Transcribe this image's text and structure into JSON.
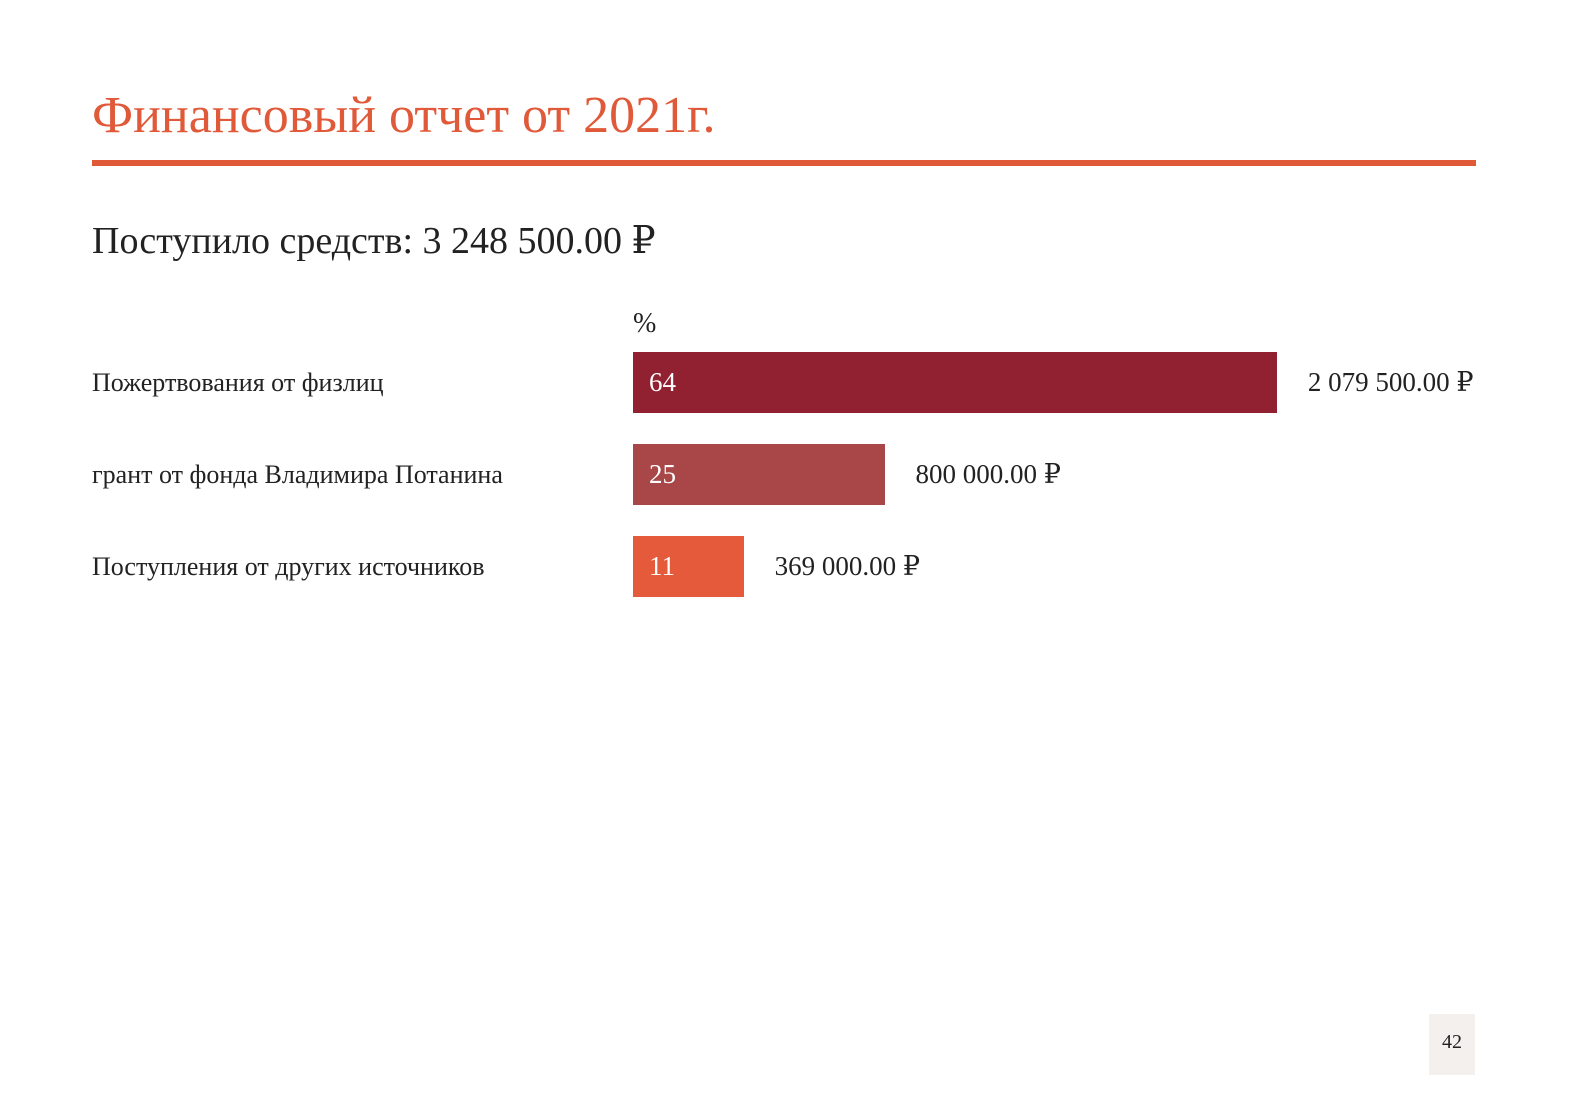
{
  "title": "Финансовый отчет от 2021г.",
  "subtitle": "Поступило средств: 3 248 500.00 ₽",
  "page_number": "42",
  "colors": {
    "accent": "#E05A3A",
    "bar1": "#912030",
    "bar2": "#A84648",
    "bar3": "#E45A3A"
  },
  "chart_data": {
    "type": "bar",
    "orientation": "horizontal",
    "unit_label": "%",
    "categories": [
      "Пожертвования от физлиц",
      "грант от фонда Владимира Потанина",
      "Поступления от других источников"
    ],
    "values": [
      64,
      25,
      11
    ],
    "value_labels": [
      "64",
      "25",
      "11"
    ],
    "amounts": [
      "2 079 500.00 ₽",
      "800 000.00 ₽",
      "369 000.00 ₽"
    ],
    "xlim": [
      0,
      100
    ]
  }
}
